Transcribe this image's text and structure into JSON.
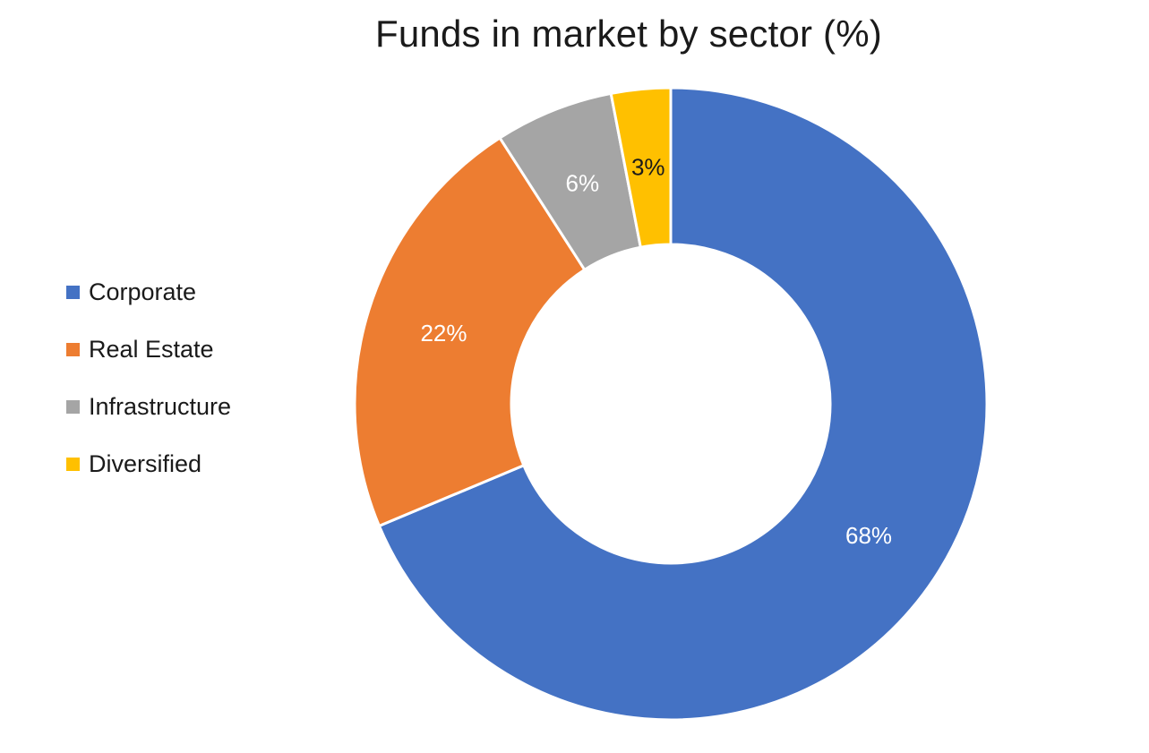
{
  "chart_data": {
    "type": "pie",
    "donut": true,
    "title": "Funds in market by sector (%)",
    "categories": [
      "Corporate",
      "Real Estate",
      "Infrastructure",
      "Diversified"
    ],
    "values": [
      68,
      22,
      6,
      3
    ],
    "data_labels": [
      "68%",
      "22%",
      "6%",
      "3%"
    ],
    "colors": [
      "#4472C4",
      "#ED7D31",
      "#A5A5A5",
      "#FFC000"
    ],
    "label_colors": [
      "#FFFFFF",
      "#FFFFFF",
      "#FFFFFF",
      "#1A1A1A"
    ],
    "legend_position": "left"
  }
}
